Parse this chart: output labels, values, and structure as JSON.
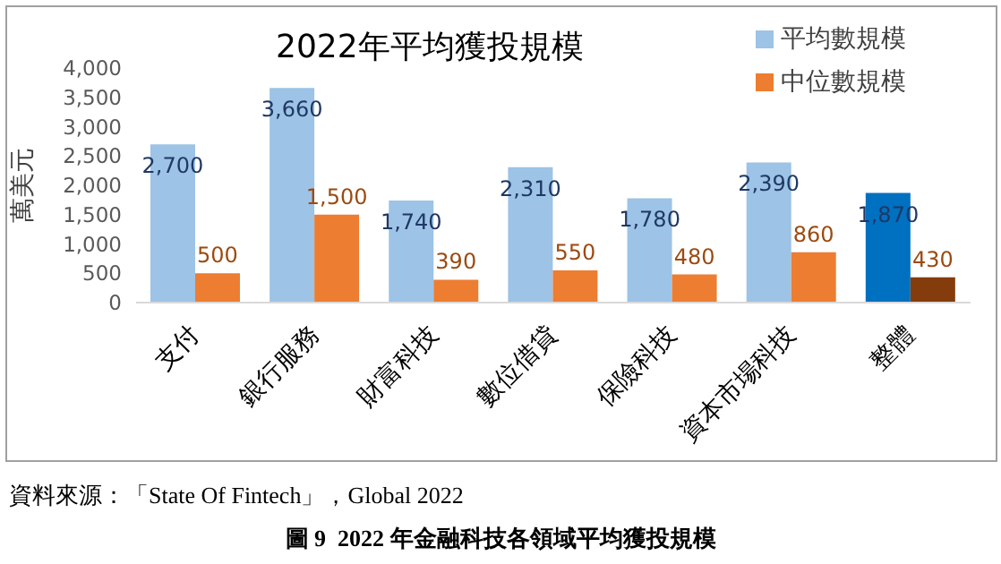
{
  "chart_data": {
    "type": "bar",
    "title": "2022年平均獲投規模",
    "ylabel": "萬美元",
    "categories": [
      "支付",
      "銀行服務",
      "財富科技",
      "數位借貸",
      "保險科技",
      "資本市場科技",
      "整體"
    ],
    "series": [
      {
        "name": "平均數規模",
        "color": "#9dc3e6",
        "colors": [
          "#9dc3e6",
          "#9dc3e6",
          "#9dc3e6",
          "#9dc3e6",
          "#9dc3e6",
          "#9dc3e6",
          "#0070c0"
        ],
        "values": [
          2700,
          3660,
          1740,
          2310,
          1780,
          2390,
          1870
        ],
        "value_labels": [
          "2,700",
          "3,660",
          "1,740",
          "2,310",
          "1,780",
          "2,390",
          "1,870"
        ]
      },
      {
        "name": "中位數規模",
        "color": "#ed7d31",
        "colors": [
          "#ed7d31",
          "#ed7d31",
          "#ed7d31",
          "#ed7d31",
          "#ed7d31",
          "#ed7d31",
          "#843c0c"
        ],
        "values": [
          500,
          1500,
          390,
          550,
          480,
          860,
          430
        ],
        "value_labels": [
          "500",
          "1,500",
          "390",
          "550",
          "480",
          "860",
          "430"
        ]
      }
    ],
    "ylim": [
      0,
      4000
    ],
    "yticks": [
      {
        "value": 0,
        "label": "0"
      },
      {
        "value": 500,
        "label": "500"
      },
      {
        "value": 1000,
        "label": "1,000"
      },
      {
        "value": 1500,
        "label": "1,500"
      },
      {
        "value": 2000,
        "label": "2,000"
      },
      {
        "value": 2500,
        "label": "2,500"
      },
      {
        "value": 3000,
        "label": "3,000"
      },
      {
        "value": 3500,
        "label": "3,500"
      },
      {
        "value": 4000,
        "label": "4,000"
      }
    ],
    "grid": false,
    "legend": "top right",
    "annotations": [
      "資料來源：「State Of Fintech」，Global 2022",
      "圖 9  2022 年金融科技各領域平均獲投規模"
    ]
  }
}
